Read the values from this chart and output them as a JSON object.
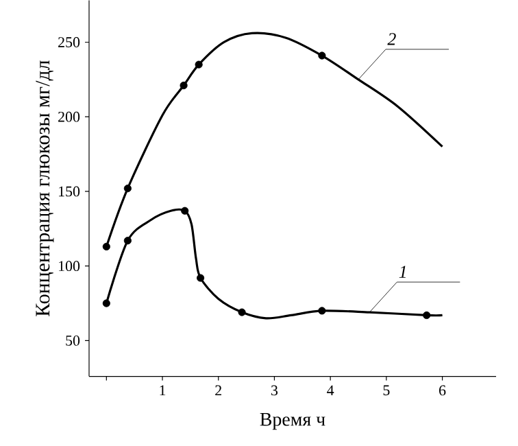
{
  "chart_data": {
    "type": "line",
    "xlabel": "Время ч",
    "ylabel": "Концентрация глюкозы мг/дл",
    "xlim": [
      -0.31,
      6.96
    ],
    "ylim": [
      26,
      278
    ],
    "xticks": [
      {
        "value": 0,
        "label": null
      },
      1,
      2,
      3,
      4,
      5,
      6
    ],
    "yticks": [
      50,
      100,
      150,
      200,
      250
    ],
    "grid": false,
    "line_style": "solid",
    "series": [
      {
        "name": "2",
        "marker": "none",
        "color": "#000000",
        "x": [
          0,
          0.38,
          1.0,
          1.38,
          1.65,
          2.1,
          2.6,
          3.2,
          3.85,
          4.5,
          5.2,
          6.0
        ],
        "values": [
          113,
          152,
          201,
          221,
          235,
          250,
          256,
          253,
          241,
          225,
          207,
          180
        ]
      },
      {
        "type": "scatter",
        "marker": "circle",
        "color": "#000000",
        "x": [
          0,
          0.38,
          1.38,
          1.65,
          3.85
        ],
        "values": [
          113,
          152,
          221,
          235,
          241
        ]
      },
      {
        "name": "1",
        "marker": "none",
        "color": "#000000",
        "x": [
          0,
          0.38,
          0.8,
          1.15,
          1.4,
          1.52,
          1.6,
          1.68,
          2.0,
          2.42,
          2.85,
          3.3,
          3.85,
          4.7,
          5.72,
          6.0
        ],
        "values": [
          75,
          117,
          131,
          137,
          137,
          128,
          105,
          92,
          78,
          69,
          65,
          67,
          70,
          69,
          67,
          67
        ]
      },
      {
        "type": "scatter",
        "marker": "circle",
        "color": "#000000",
        "x": [
          0,
          0.38,
          1.4,
          1.68,
          2.42,
          3.85,
          5.72
        ],
        "values": [
          75,
          117,
          137,
          92,
          69,
          70,
          67
        ]
      }
    ]
  }
}
